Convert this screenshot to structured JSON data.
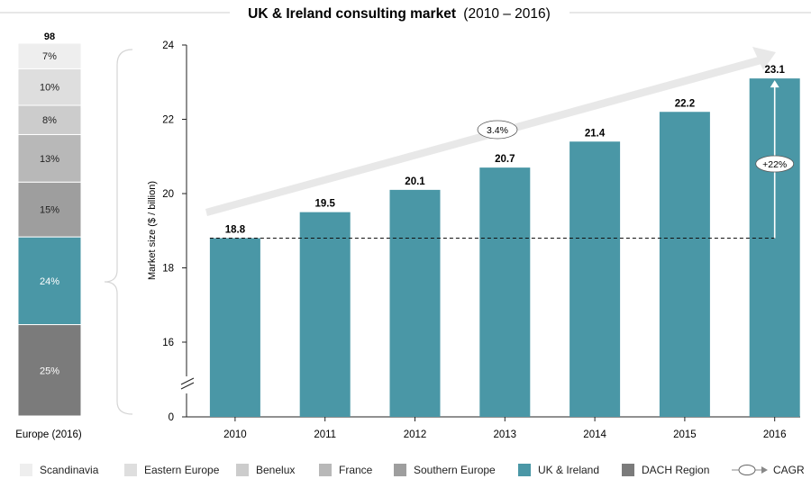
{
  "title": {
    "main": "UK & Ireland consulting market",
    "range": "(2010 – 2016)"
  },
  "colors": {
    "teal": "#4a97a6",
    "dach": "#7b7b7b",
    "southern_europe": "#9e9e9e",
    "france": "#b8b8b8",
    "benelux": "#cccccc",
    "eastern_europe": "#dedede",
    "scandinavia": "#eeeeee",
    "trend_arrow": "#e8e8e8"
  },
  "chart_data": [
    {
      "type": "bar",
      "stacking": "percent",
      "title": "Europe (2016)",
      "total_label": "98",
      "categories": [
        "Europe (2016)"
      ],
      "series": [
        {
          "name": "DACH Region",
          "values": [
            25
          ],
          "label": "25%"
        },
        {
          "name": "UK & Ireland",
          "values": [
            24
          ],
          "label": "24%"
        },
        {
          "name": "Southern Europe",
          "values": [
            15
          ],
          "label": "15%"
        },
        {
          "name": "France",
          "values": [
            13
          ],
          "label": "13%"
        },
        {
          "name": "Benelux",
          "values": [
            8
          ],
          "label": "8%"
        },
        {
          "name": "Eastern Europe",
          "values": [
            10
          ],
          "label": "10%"
        },
        {
          "name": "Scandinavia",
          "values": [
            7
          ],
          "label": "7%"
        }
      ]
    },
    {
      "type": "bar",
      "title": "UK & Ireland consulting market (2010 – 2016)",
      "xlabel": "",
      "ylabel": "Market size ($ / billion)",
      "ylim": [
        0,
        24
      ],
      "axis_break": true,
      "yticks": [
        0,
        16,
        18,
        20,
        22,
        24
      ],
      "categories": [
        "2010",
        "2011",
        "2012",
        "2013",
        "2014",
        "2015",
        "2016"
      ],
      "values": [
        18.8,
        19.5,
        20.1,
        20.7,
        21.4,
        22.2,
        23.1
      ],
      "value_labels": [
        "18.8",
        "19.5",
        "20.1",
        "20.7",
        "21.4",
        "22.2",
        "23.1"
      ],
      "annotations": {
        "cagr_label": "3.4%",
        "growth_label": "+22%",
        "baseline_value": 18.8
      }
    }
  ],
  "legend": [
    {
      "label": "Scandinavia",
      "color": "#eeeeee"
    },
    {
      "label": "Eastern Europe",
      "color": "#dedede"
    },
    {
      "label": "Benelux",
      "color": "#cccccc"
    },
    {
      "label": "France",
      "color": "#b8b8b8"
    },
    {
      "label": "Southern Europe",
      "color": "#9e9e9e"
    },
    {
      "label": "UK & Ireland",
      "color": "#4a97a6"
    },
    {
      "label": "DACH Region",
      "color": "#7b7b7b"
    },
    {
      "label": "CAGR",
      "icon": "cagr-arrow-icon"
    }
  ]
}
